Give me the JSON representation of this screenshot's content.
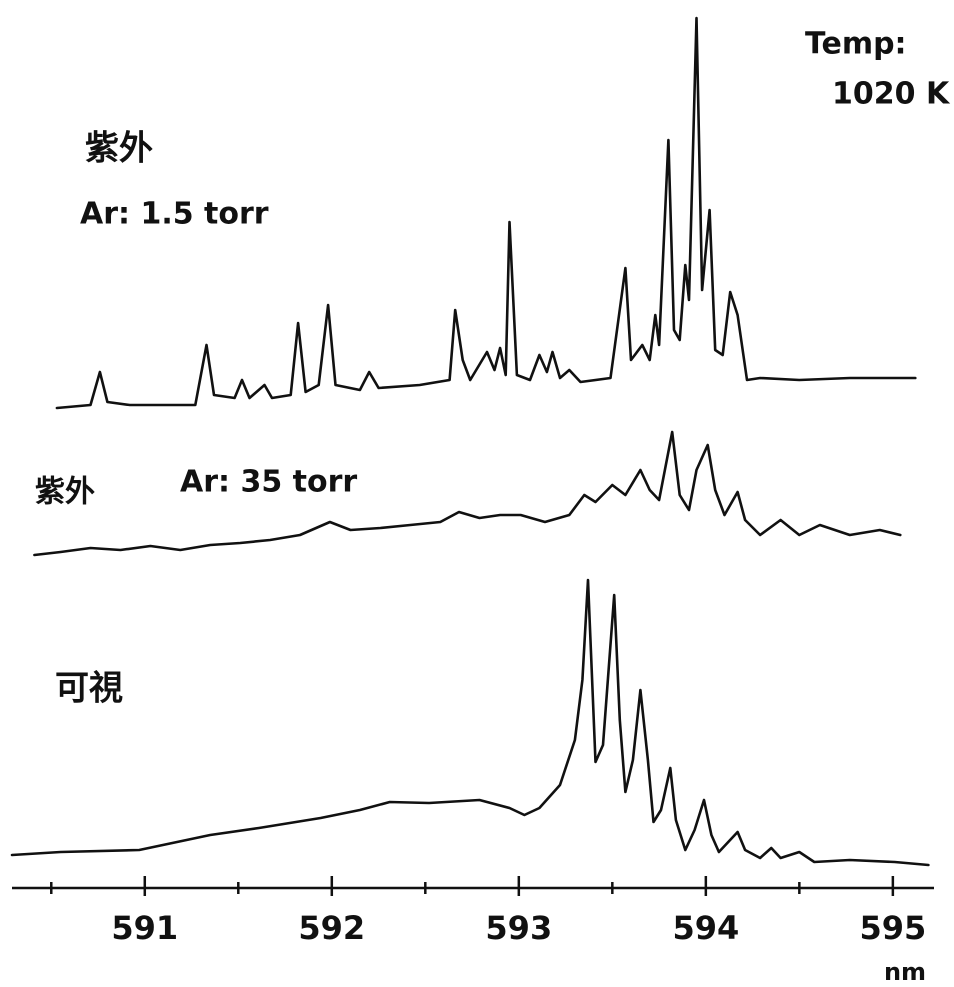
{
  "chart_data": {
    "type": "line",
    "annotation": [
      "Temp:",
      "1020 K"
    ],
    "x_label": "nm",
    "xlim": [
      590.29,
      595.22
    ],
    "xticks": [
      591,
      592,
      593,
      594,
      595
    ],
    "minor_xticks": [
      590.5,
      591.5,
      592.5,
      593.5,
      594.5
    ],
    "ylim": [
      0,
      87
    ],
    "color": "#111111",
    "series": [
      {
        "name": "紫外",
        "condition": "Ar: 1.5 torr",
        "x": [
          590.53,
          590.71,
          590.76,
          590.8,
          590.92,
          591.27,
          591.33,
          591.37,
          591.48,
          591.52,
          591.56,
          591.64,
          591.68,
          591.78,
          591.82,
          591.86,
          591.93,
          591.98,
          592.02,
          592.15,
          592.2,
          592.25,
          592.47,
          592.63,
          592.66,
          592.7,
          592.74,
          592.83,
          592.87,
          592.9,
          592.93,
          592.95,
          592.99,
          593.06,
          593.11,
          593.15,
          593.18,
          593.22,
          593.27,
          593.33,
          593.49,
          593.57,
          593.6,
          593.66,
          593.7,
          593.73,
          593.75,
          593.8,
          593.83,
          593.86,
          593.89,
          593.91,
          593.95,
          593.98,
          594.02,
          594.05,
          594.09,
          594.13,
          594.17,
          594.22,
          594.29,
          594.5,
          594.77,
          595.12
        ],
        "values": [
          47.2,
          47.5,
          50.8,
          47.8,
          47.5,
          47.5,
          53.5,
          48.5,
          48.2,
          50.0,
          48.2,
          49.5,
          48.2,
          48.5,
          55.7,
          48.8,
          49.5,
          57.5,
          49.5,
          49.0,
          50.8,
          49.2,
          49.5,
          50.0,
          57.0,
          52.0,
          50.0,
          52.8,
          51.0,
          53.2,
          50.5,
          65.8,
          50.5,
          50.0,
          52.5,
          50.8,
          52.8,
          50.2,
          51.0,
          49.8,
          50.2,
          61.2,
          52.0,
          53.5,
          52.0,
          56.5,
          53.5,
          74.0,
          55.0,
          54.0,
          61.5,
          58.0,
          86.2,
          59.0,
          67.0,
          53.0,
          52.5,
          58.8,
          56.5,
          50.0,
          50.2,
          50.0,
          50.2,
          50.2
        ]
      },
      {
        "name": "紫外",
        "condition": "Ar: 35 torr",
        "x": [
          590.41,
          590.55,
          590.71,
          590.87,
          591.03,
          591.19,
          591.35,
          591.51,
          591.67,
          591.83,
          591.99,
          592.1,
          592.26,
          592.42,
          592.58,
          592.68,
          592.79,
          592.9,
          593.01,
          593.14,
          593.27,
          593.35,
          593.41,
          593.5,
          593.57,
          593.65,
          593.7,
          593.75,
          593.82,
          593.86,
          593.91,
          593.95,
          594.01,
          594.05,
          594.1,
          594.17,
          594.21,
          594.29,
          594.4,
          594.5,
          594.61,
          594.77,
          594.93,
          595.04
        ],
        "values": [
          32.5,
          32.8,
          33.2,
          33.0,
          33.4,
          33.0,
          33.5,
          33.7,
          34.0,
          34.5,
          35.8,
          35.0,
          35.2,
          35.5,
          35.8,
          36.8,
          36.2,
          36.5,
          36.5,
          35.8,
          36.5,
          38.5,
          37.8,
          39.5,
          38.5,
          41.0,
          39.0,
          38.0,
          44.8,
          38.5,
          37.0,
          41.0,
          43.5,
          39.0,
          36.5,
          38.8,
          36.0,
          34.5,
          36.0,
          34.5,
          35.5,
          34.5,
          35.0,
          34.5
        ]
      },
      {
        "name": "可視",
        "x": [
          590.29,
          590.55,
          590.97,
          591.35,
          591.61,
          591.94,
          592.15,
          592.31,
          592.52,
          592.79,
          592.95,
          593.03,
          593.11,
          593.22,
          593.3,
          593.34,
          593.37,
          593.41,
          593.45,
          593.51,
          593.54,
          593.57,
          593.61,
          593.65,
          593.69,
          593.72,
          593.76,
          593.81,
          593.84,
          593.89,
          593.94,
          593.99,
          594.03,
          594.07,
          594.17,
          594.21,
          594.29,
          594.35,
          594.4,
          594.5,
          594.58,
          594.77,
          595.01,
          595.19
        ],
        "values": [
          2.5,
          2.8,
          3.0,
          4.5,
          5.2,
          6.2,
          7.0,
          7.8,
          7.7,
          8.0,
          7.2,
          6.5,
          7.2,
          9.5,
          14.0,
          20.0,
          30.0,
          11.8,
          13.5,
          28.5,
          16.0,
          8.8,
          12.0,
          19.0,
          12.0,
          5.8,
          7.0,
          11.2,
          6.0,
          3.0,
          5.0,
          8.0,
          4.5,
          2.8,
          4.8,
          3.0,
          2.2,
          3.2,
          2.2,
          2.8,
          1.8,
          2.0,
          1.8,
          1.5
        ]
      }
    ]
  }
}
